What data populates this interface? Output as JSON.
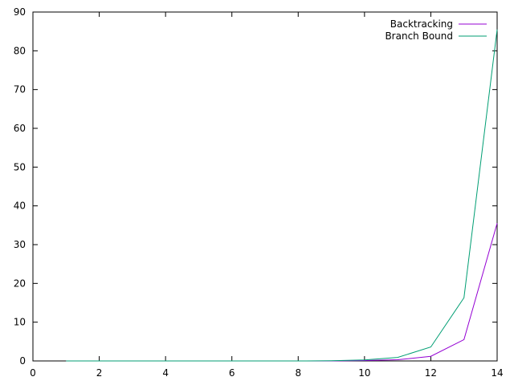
{
  "chart_data": {
    "type": "line",
    "title": "",
    "xlabel": "",
    "ylabel": "",
    "xlim": [
      0,
      14
    ],
    "ylim": [
      0,
      90
    ],
    "xticks": [
      0,
      2,
      4,
      6,
      8,
      10,
      12,
      14
    ],
    "yticks": [
      0,
      10,
      20,
      30,
      40,
      50,
      60,
      70,
      80,
      90
    ],
    "grid": false,
    "legend_position": "top-right",
    "series": [
      {
        "name": "Backtracking",
        "color": "#9400d3",
        "x": [
          1,
          2,
          3,
          4,
          5,
          6,
          7,
          8,
          9,
          10,
          11,
          12,
          13,
          14
        ],
        "y": [
          0,
          0,
          0,
          0,
          0,
          0,
          0,
          0,
          0,
          0.1,
          0.3,
          1.2,
          5.5,
          35.5
        ]
      },
      {
        "name": "Branch  Bound",
        "color": "#009e73",
        "x": [
          1,
          2,
          3,
          4,
          5,
          6,
          7,
          8,
          9,
          10,
          11,
          12,
          13,
          14
        ],
        "y": [
          0,
          0,
          0,
          0,
          0,
          0,
          0,
          0,
          0.05,
          0.25,
          0.9,
          3.6,
          16.3,
          85.5
        ]
      }
    ]
  }
}
